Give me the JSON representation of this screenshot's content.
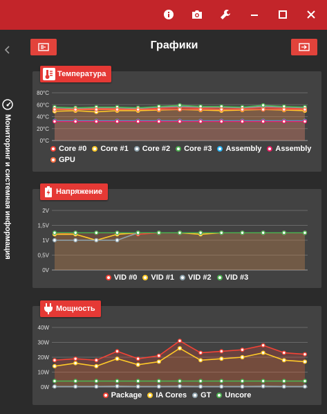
{
  "window": {
    "buttons": [
      "info-icon",
      "camera-icon",
      "wrench-icon",
      "minimize-icon",
      "maximize-icon",
      "close-icon"
    ]
  },
  "sidebar": {
    "label": "Мониторинг и системная информация"
  },
  "header": {
    "title": "Графики"
  },
  "colors": {
    "accent": "#e53935",
    "titlebar": "#c3252a",
    "panel": "#424242",
    "background": "#2b2b2b"
  },
  "panels": [
    {
      "title": "Температура",
      "icon": "thermometer-icon",
      "chart_data": {
        "type": "line",
        "y_ticks": [
          "80°C",
          "60°C",
          "40°C",
          "20°C",
          "0°C"
        ],
        "ylim": [
          0,
          80
        ],
        "points": 13,
        "series": [
          {
            "name": "Core #0",
            "color": "#f44336",
            "values": [
              53,
              52,
              54,
              53,
              52,
              54,
              55,
              54,
              55,
              54,
              55,
              54,
              54
            ]
          },
          {
            "name": "Core #1",
            "color": "#ffca28",
            "values": [
              49,
              50,
              48,
              50,
              50,
              51,
              52,
              51,
              50,
              51,
              52,
              51,
              50
            ]
          },
          {
            "name": "Core #2",
            "color": "#90a4ae",
            "values": [
              55,
              54,
              55,
              55,
              54,
              56,
              57,
              56,
              56,
              55,
              57,
              56,
              55
            ]
          },
          {
            "name": "Core #3",
            "color": "#4caf50",
            "values": [
              56,
              55,
              56,
              56,
              55,
              57,
              59,
              57,
              57,
              56,
              59,
              57,
              56
            ]
          },
          {
            "name": "Assembly",
            "color": "#29b6f6",
            "values": [
              33,
              33,
              33,
              33,
              33,
              33,
              33,
              33,
              33,
              33,
              33,
              33,
              33
            ]
          },
          {
            "name": "Assembly",
            "color": "#e91e63",
            "values": [
              32,
              32,
              32,
              32,
              32,
              32,
              32,
              32,
              32,
              32,
              32,
              32,
              32
            ]
          },
          {
            "name": "GPU",
            "color": "#ff7043",
            "values": [
              52,
              52,
              52,
              52,
              52,
              52,
              52,
              52,
              52,
              52,
              52,
              52,
              52
            ]
          }
        ]
      }
    },
    {
      "title": "Напряжение",
      "icon": "battery-charging-icon",
      "chart_data": {
        "type": "line",
        "y_ticks": [
          "2V",
          "1,5V",
          "1V",
          "0,5V",
          "0V"
        ],
        "ylim": [
          0,
          2
        ],
        "points": 13,
        "series": [
          {
            "name": "VID #0",
            "color": "#f44336",
            "values": [
              1.2,
              1.25,
              1.25,
              1.25,
              1.2,
              1.25,
              1.25,
              1.25,
              1.25,
              1.25,
              1.25,
              1.25,
              1.25
            ]
          },
          {
            "name": "VID #1",
            "color": "#ffca28",
            "values": [
              1.2,
              1.2,
              1.0,
              1.2,
              1.25,
              1.25,
              1.25,
              1.2,
              1.25,
              1.25,
              1.25,
              1.25,
              1.25
            ]
          },
          {
            "name": "VID #2",
            "color": "#90a4ae",
            "values": [
              1.0,
              1.0,
              1.0,
              1.0,
              1.25,
              1.25,
              1.25,
              1.25,
              1.25,
              1.25,
              1.25,
              1.25,
              1.25
            ]
          },
          {
            "name": "VID #3",
            "color": "#4caf50",
            "values": [
              1.25,
              1.25,
              1.25,
              1.25,
              1.25,
              1.25,
              1.25,
              1.25,
              1.25,
              1.25,
              1.25,
              1.25,
              1.25
            ]
          }
        ]
      }
    },
    {
      "title": "Мощность",
      "icon": "plug-icon",
      "chart_data": {
        "type": "line",
        "y_ticks": [
          "40W",
          "30W",
          "20W",
          "10W",
          "0W"
        ],
        "ylim": [
          0,
          40
        ],
        "points": 13,
        "series": [
          {
            "name": "Package",
            "color": "#f44336",
            "values": [
              18,
              19,
              18,
              24,
              19,
              21,
              31,
              23,
              24,
              25,
              28,
              23,
              22
            ]
          },
          {
            "name": "IA Cores",
            "color": "#ffca28",
            "values": [
              14,
              16,
              14,
              19,
              15,
              17,
              26,
              18,
              19,
              20,
              23,
              18,
              17
            ]
          },
          {
            "name": "GT",
            "color": "#90a4ae",
            "values": [
              0.3,
              0.3,
              0.3,
              0.5,
              0.3,
              0.3,
              0.5,
              0.3,
              0.3,
              0.3,
              0.5,
              0.3,
              0.3
            ]
          },
          {
            "name": "Uncore",
            "color": "#4caf50",
            "values": [
              4,
              4,
              4,
              4,
              4,
              4,
              4,
              4,
              4,
              4,
              4,
              4,
              4
            ]
          }
        ]
      }
    }
  ]
}
